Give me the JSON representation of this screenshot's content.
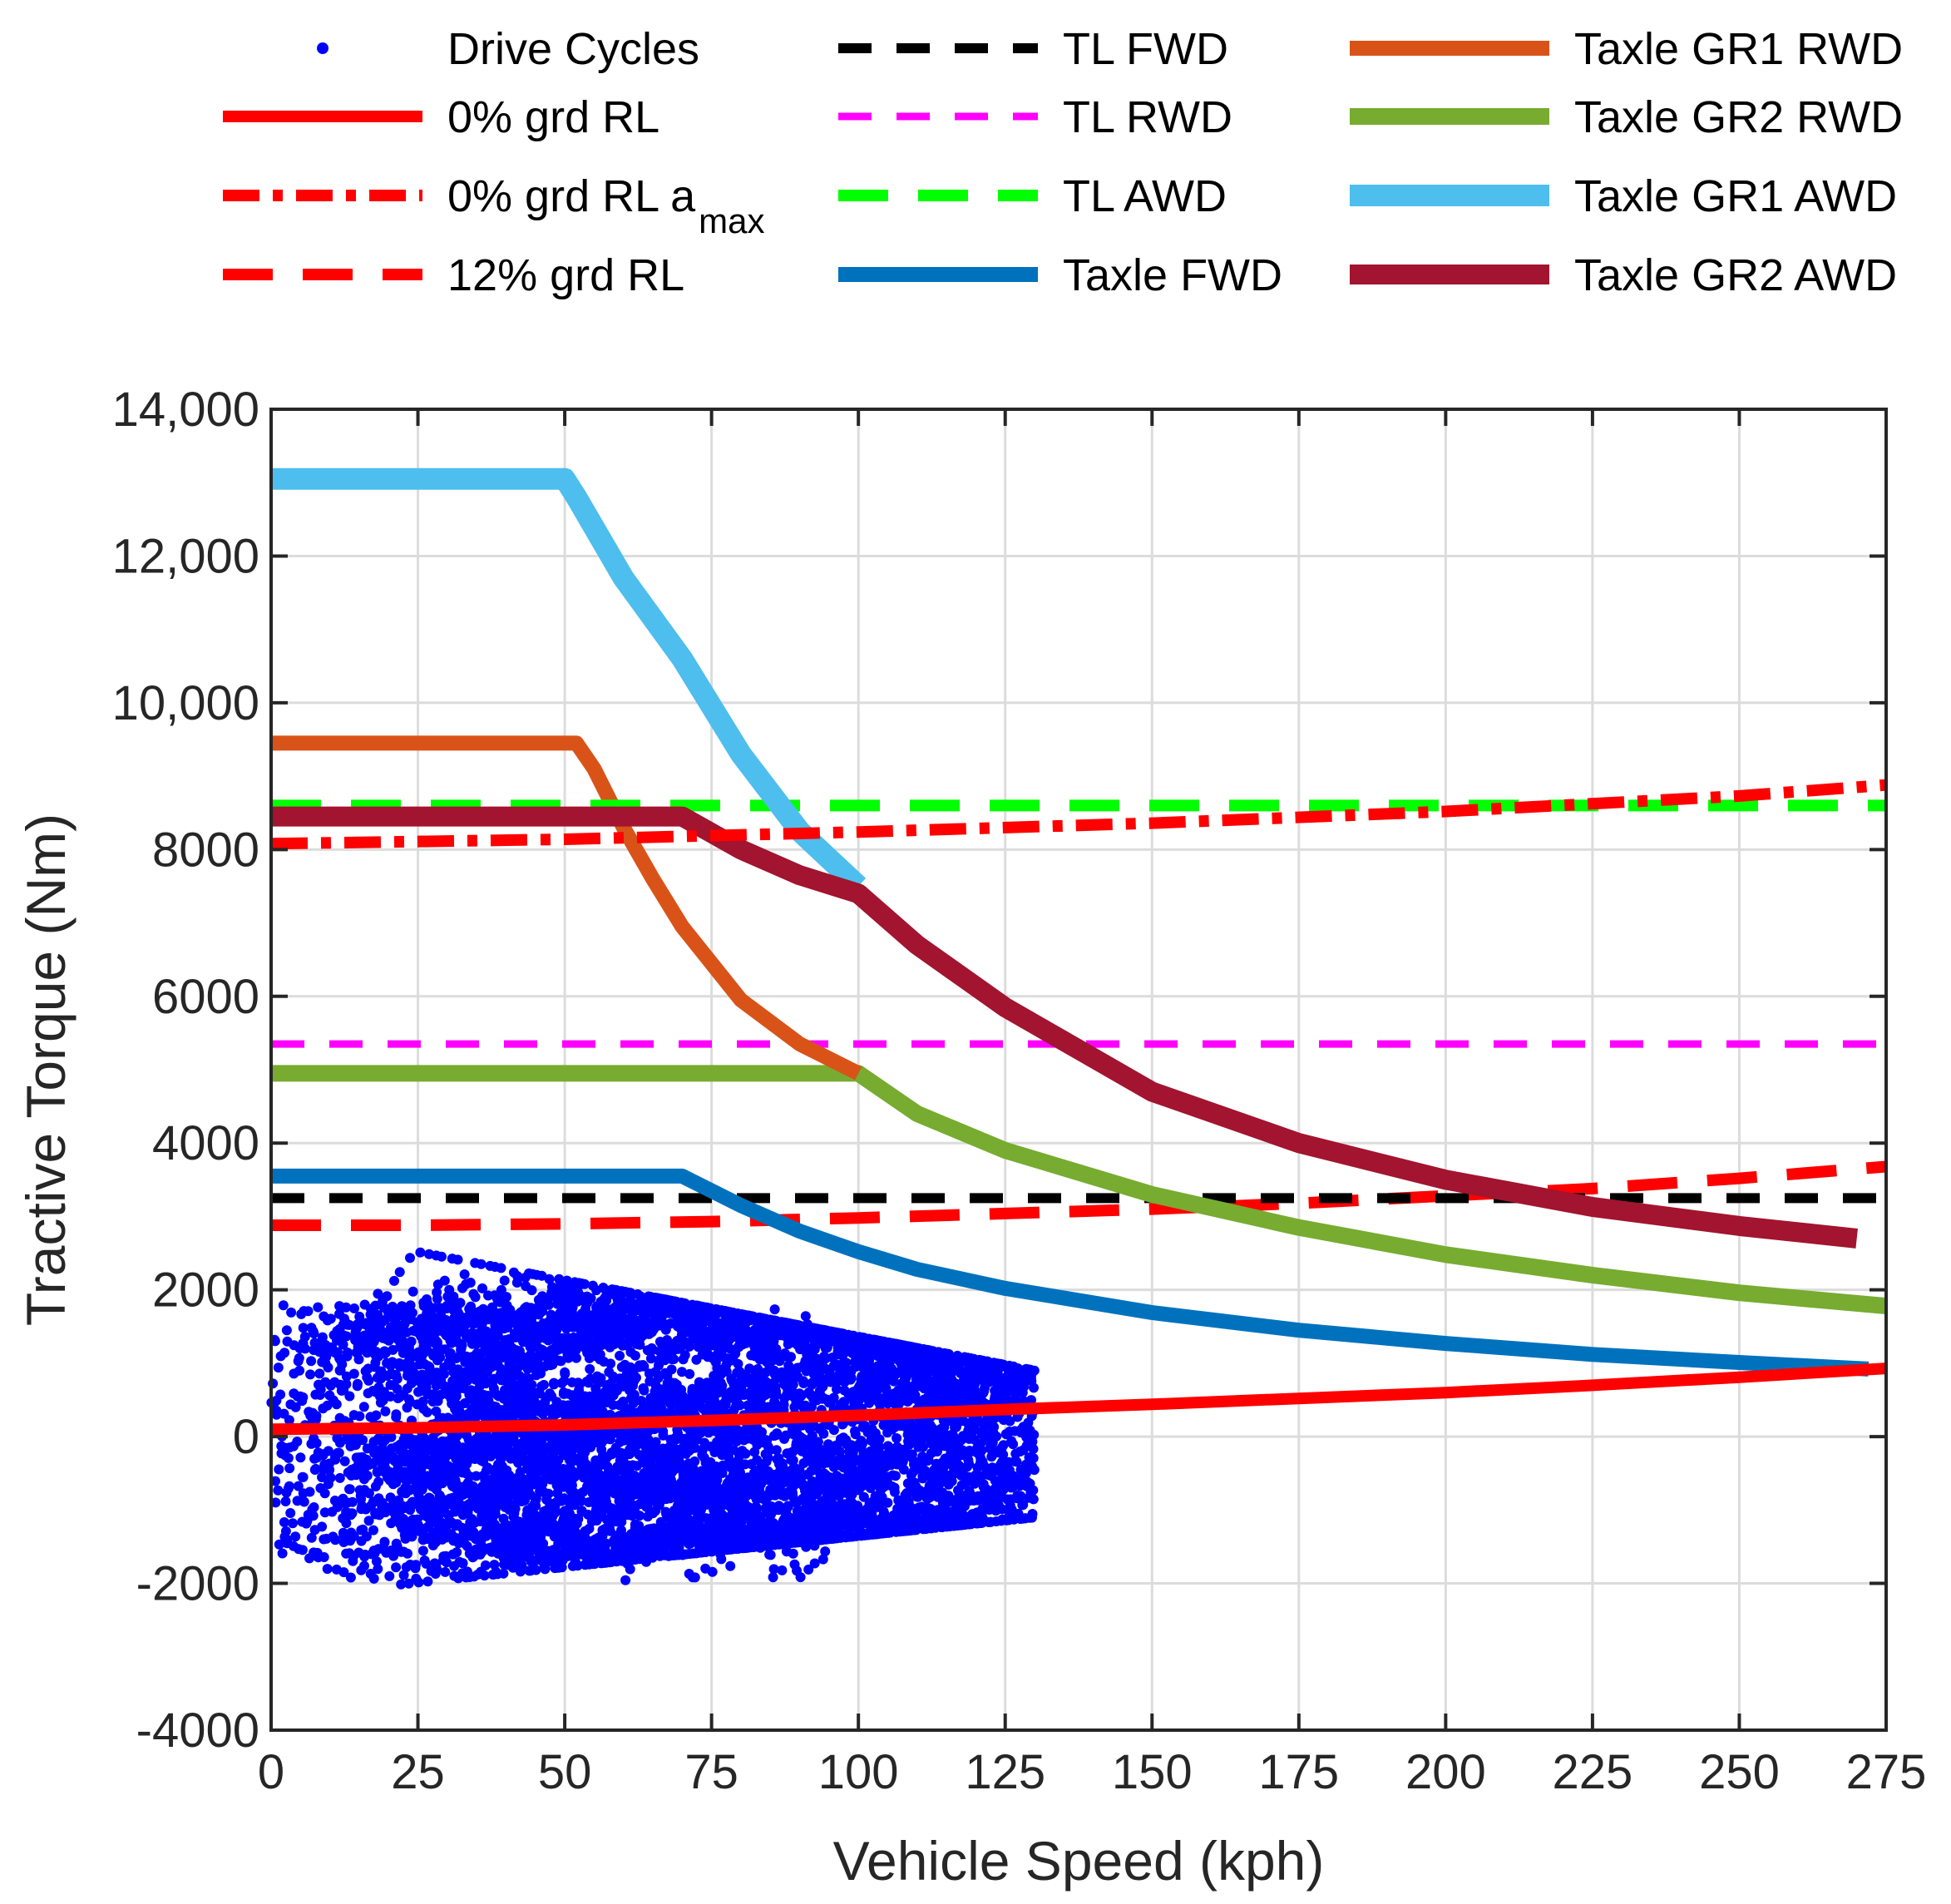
{
  "chart_data": {
    "type": "line",
    "xlabel": "Vehicle Speed (kph)",
    "ylabel": "Tractive Torque (Nm)",
    "xlim": [
      0,
      275
    ],
    "ylim": [
      -4000,
      14000
    ],
    "xticks": [
      0,
      25,
      50,
      75,
      100,
      125,
      150,
      175,
      200,
      225,
      250,
      275
    ],
    "xtick_labels": [
      "0",
      "25",
      "50",
      "75",
      "100",
      "125",
      "150",
      "175",
      "200",
      "225",
      "250",
      "275"
    ],
    "yticks": [
      -4000,
      -2000,
      0,
      2000,
      4000,
      6000,
      8000,
      10000,
      12000,
      14000
    ],
    "ytick_labels": [
      "-4000",
      "-2000",
      "0",
      "2000",
      "4000",
      "6000",
      "8000",
      "10,000",
      "12,000",
      "14,000"
    ],
    "grid": true,
    "legend_position": "top",
    "series": [
      {
        "name": "Drive Cycles",
        "color": "#0000ff",
        "style": "points",
        "note": "dense scatter of drive-cycle points, roughly 0-130 kph and -2200 to 2900 Nm"
      },
      {
        "name": "0% grd RL",
        "color": "#ff0000",
        "style": "solid",
        "x": [
          0,
          25,
          50,
          75,
          100,
          125,
          150,
          175,
          200,
          225,
          250,
          275
        ],
        "y": [
          100,
          120,
          160,
          220,
          290,
          370,
          440,
          520,
          600,
          700,
          810,
          930
        ]
      },
      {
        "name": "0% grd RL a",
        "name_sub": "max",
        "color": "#ff0000",
        "style": "dashdot",
        "x": [
          0,
          50,
          100,
          150,
          200,
          250,
          275
        ],
        "y": [
          8080,
          8140,
          8240,
          8360,
          8520,
          8730,
          8880
        ]
      },
      {
        "name": "12% grd RL",
        "color": "#ff0000",
        "style": "dashed",
        "x": [
          0,
          25,
          50,
          75,
          100,
          125,
          150,
          175,
          200,
          225,
          250,
          275
        ],
        "y": [
          2880,
          2880,
          2900,
          2930,
          2980,
          3040,
          3100,
          3180,
          3280,
          3380,
          3520,
          3680
        ]
      },
      {
        "name": "TL FWD",
        "color": "#000000",
        "style": "dashed",
        "x": [
          0,
          275
        ],
        "y": [
          3250,
          3250
        ]
      },
      {
        "name": "TL RWD",
        "color": "#ff00ff",
        "style": "dashed",
        "x": [
          0,
          275
        ],
        "y": [
          5350,
          5350
        ]
      },
      {
        "name": "TL AWD",
        "color": "#00ff00",
        "style": "dashed",
        "x": [
          0,
          275
        ],
        "y": [
          8600,
          8600
        ]
      },
      {
        "name": "Taxle FWD",
        "color": "#0072bd",
        "style": "solid",
        "x": [
          0,
          70,
          80,
          90,
          100,
          110,
          125,
          150,
          175,
          200,
          225,
          250,
          272
        ],
        "y": [
          3550,
          3550,
          3150,
          2800,
          2520,
          2280,
          2020,
          1690,
          1450,
          1270,
          1120,
          1010,
          920
        ]
      },
      {
        "name": "Taxle GR1 RWD",
        "color": "#d95319",
        "style": "solid",
        "x": [
          0,
          52,
          55,
          60,
          65,
          70,
          80,
          90,
          100
        ],
        "y": [
          9450,
          9450,
          9100,
          8300,
          7600,
          6950,
          5950,
          5350,
          4950
        ]
      },
      {
        "name": "Taxle GR2 RWD",
        "color": "#77ac30",
        "style": "solid",
        "x": [
          0,
          100,
          110,
          125,
          150,
          175,
          200,
          225,
          250,
          275
        ],
        "y": [
          4950,
          4950,
          4400,
          3900,
          3300,
          2850,
          2480,
          2200,
          1960,
          1780
        ]
      },
      {
        "name": "Taxle GR1 AWD",
        "color": "#4dbeee",
        "style": "solid",
        "x": [
          0,
          50,
          52,
          60,
          70,
          80,
          90,
          100
        ],
        "y": [
          13050,
          13050,
          12800,
          11700,
          10600,
          9300,
          8250,
          7500
        ]
      },
      {
        "name": "Taxle GR2 AWD",
        "color": "#a2142f",
        "style": "solid",
        "x": [
          0,
          70,
          80,
          90,
          100,
          110,
          125,
          150,
          175,
          200,
          225,
          250,
          270
        ],
        "y": [
          8450,
          8450,
          8000,
          7650,
          7400,
          6700,
          5850,
          4700,
          4000,
          3500,
          3130,
          2870,
          2700
        ]
      }
    ]
  }
}
